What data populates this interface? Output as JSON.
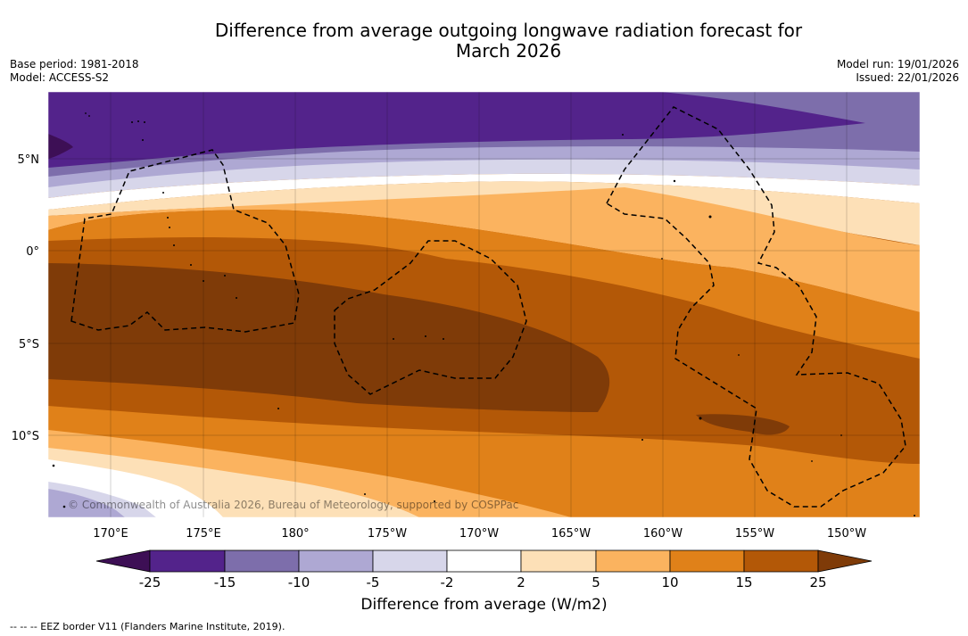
{
  "title": {
    "line1": "Difference from average outgoing longwave radiation forecast for",
    "line2": "March 2026"
  },
  "meta": {
    "base_period": "Base period: 1981-2018",
    "model": "Model: ACCESS-S2",
    "model_run": "Model run: 19/01/2026",
    "issued": "Issued: 22/01/2026"
  },
  "map": {
    "copyright": "© Commonwealth of Australia 2026, Bureau of Meteorology, supported by COSPPac",
    "lon_ticks": [
      "170°E",
      "175°E",
      "180°",
      "175°W",
      "170°W",
      "165°W",
      "160°W",
      "155°W",
      "150°W"
    ],
    "lat_ticks": [
      "5°N",
      "0°",
      "5°S",
      "10°S"
    ]
  },
  "colorbar": {
    "labels": [
      "-25",
      "-15",
      "-10",
      "-5",
      "-2",
      "2",
      "5",
      "10",
      "15",
      "25"
    ],
    "colors": [
      "#3d0f55",
      "#53238b",
      "#7d6eab",
      "#aea8d3",
      "#d7d6ea",
      "#ffffff",
      "#fde0b7",
      "#fbb35f",
      "#e08119",
      "#b35807",
      "#7f3b08"
    ],
    "xlabel": "Difference from average (W/m2)"
  },
  "footer": "--  --  -- EEZ border V11 (Flanders Marine Institute, 2019)."
}
